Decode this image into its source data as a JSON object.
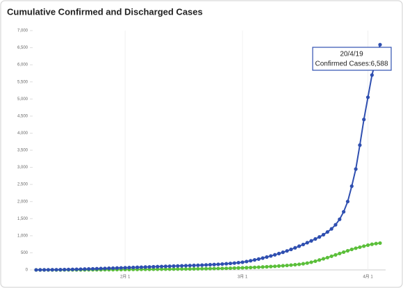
{
  "chart_data": {
    "type": "line",
    "title": "Cumulative Confirmed and Discharged Cases",
    "categories": [
      null,
      null,
      null,
      null,
      null,
      null,
      null,
      null,
      null,
      null,
      null,
      null,
      null,
      null,
      null,
      null,
      null,
      null,
      null,
      null,
      null,
      null,
      "2月 1",
      null,
      null,
      null,
      null,
      null,
      null,
      null,
      null,
      null,
      null,
      null,
      null,
      null,
      null,
      null,
      null,
      null,
      null,
      null,
      null,
      null,
      null,
      null,
      null,
      null,
      null,
      null,
      null,
      "3月 1",
      null,
      null,
      null,
      null,
      null,
      null,
      null,
      null,
      null,
      null,
      null,
      null,
      null,
      null,
      null,
      null,
      null,
      null,
      null,
      null,
      null,
      null,
      null,
      null,
      null,
      null,
      null,
      null,
      null,
      null,
      "4月 1",
      null,
      null,
      null
    ],
    "series": [
      {
        "color": "#2f4fb0",
        "values": [
          1,
          2,
          3,
          4,
          5,
          6,
          8,
          10,
          12,
          15,
          18,
          21,
          25,
          28,
          32,
          36,
          40,
          44,
          48,
          52,
          56,
          60,
          64,
          68,
          72,
          76,
          80,
          84,
          88,
          92,
          96,
          100,
          104,
          108,
          112,
          116,
          120,
          124,
          128,
          132,
          136,
          140,
          146,
          152,
          158,
          164,
          172,
          180,
          190,
          200,
          212,
          225,
          245,
          268,
          292,
          318,
          346,
          376,
          408,
          442,
          478,
          516,
          556,
          600,
          646,
          694,
          744,
          796,
          850,
          906,
          964,
          1030,
          1110,
          1200,
          1320,
          1480,
          1700,
          2000,
          2450,
          2950,
          3650,
          4400,
          5050,
          5700,
          6150,
          6588
        ]
      },
      {
        "color": "#5bbf3a",
        "values": [
          0,
          0,
          0,
          0,
          0,
          0,
          0,
          1,
          1,
          2,
          2,
          3,
          3,
          4,
          4,
          5,
          5,
          6,
          7,
          8,
          9,
          10,
          12,
          13,
          14,
          15,
          16,
          17,
          18,
          19,
          20,
          21,
          22,
          23,
          24,
          25,
          26,
          27,
          28,
          30,
          32,
          34,
          36,
          38,
          40,
          42,
          44,
          47,
          50,
          54,
          58,
          62,
          66,
          70,
          75,
          80,
          86,
          92,
          99,
          106,
          114,
          122,
          131,
          141,
          152,
          164,
          180,
          200,
          225,
          255,
          290,
          325,
          360,
          400,
          440,
          480,
          520,
          560,
          600,
          635,
          665,
          695,
          725,
          750,
          770,
          785
        ]
      }
    ],
    "ylim": [
      0,
      7000
    ],
    "yticks": [
      0,
      {
        "value": 500,
        "label": "500"
      },
      {
        "value": 1000,
        "label": "1,000"
      },
      {
        "value": 1500,
        "label": "1,500"
      },
      {
        "value": 2000,
        "label": "2,000"
      },
      {
        "value": 2500,
        "label": "2,500"
      },
      {
        "value": 3000,
        "label": "3,000"
      },
      {
        "value": 3500,
        "label": "3,500"
      },
      {
        "value": 4000,
        "label": "4,000"
      },
      {
        "value": 4500,
        "label": "4,500"
      },
      {
        "value": 5000,
        "label": "5,000"
      },
      {
        "value": 5500,
        "label": "5,500"
      },
      {
        "value": 6000,
        "label": "6,000"
      },
      {
        "value": 6500,
        "label": "6,500"
      },
      {
        "value": 7000,
        "label": "7,000"
      }
    ],
    "tooltip": {
      "title": "20/4/19",
      "label": "Confirmed Cases:6,588"
    }
  }
}
